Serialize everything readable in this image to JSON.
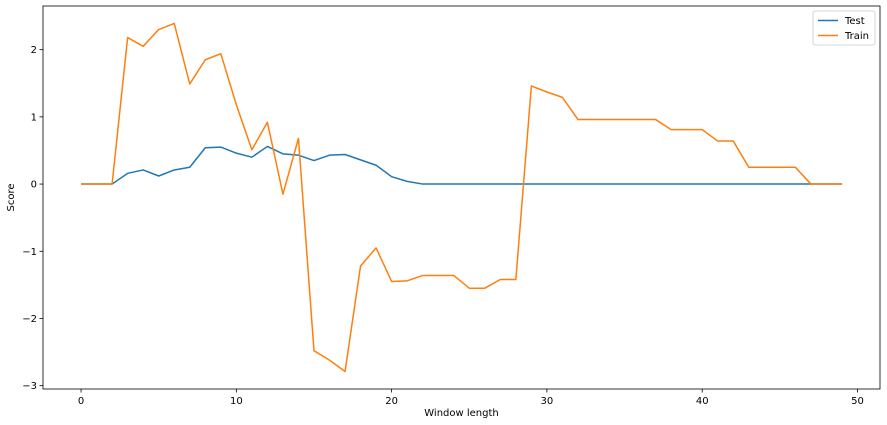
{
  "chart_data": {
    "type": "line",
    "title": "",
    "xlabel": "Window length",
    "ylabel": "Score",
    "xlim": [
      -2.45,
      51.45
    ],
    "ylim": [
      -3.05,
      2.65
    ],
    "xticks": [
      0,
      10,
      20,
      30,
      40,
      50
    ],
    "yticks": [
      -3,
      -2,
      -1,
      0,
      1,
      2
    ],
    "xtick_labels": [
      "0",
      "10",
      "20",
      "30",
      "40",
      "50"
    ],
    "ytick_labels": [
      "−3",
      "−2",
      "−1",
      "0",
      "1",
      "2"
    ],
    "grid": false,
    "legend_position": "top-right",
    "x": [
      0,
      1,
      2,
      3,
      4,
      5,
      6,
      7,
      8,
      9,
      10,
      11,
      12,
      13,
      14,
      15,
      16,
      17,
      18,
      19,
      20,
      21,
      22,
      23,
      24,
      25,
      26,
      27,
      28,
      29,
      30,
      31,
      32,
      33,
      34,
      35,
      36,
      37,
      38,
      39,
      40,
      41,
      42,
      43,
      44,
      45,
      46,
      47,
      48,
      49
    ],
    "series": [
      {
        "name": "Test",
        "color": "#1f77b4",
        "values": [
          0,
          0,
          0,
          0.16,
          0.21,
          0.12,
          0.21,
          0.25,
          0.54,
          0.55,
          0.46,
          0.4,
          0.56,
          0.45,
          0.43,
          0.35,
          0.43,
          0.44,
          0.36,
          0.28,
          0.11,
          0.04,
          0,
          0,
          0,
          0,
          0,
          0,
          0,
          0,
          0,
          0,
          0,
          0,
          0,
          0,
          0,
          0,
          0,
          0,
          0,
          0,
          0,
          0,
          0,
          0,
          0,
          0,
          0,
          0
        ]
      },
      {
        "name": "Train",
        "color": "#ff7f0e",
        "values": [
          0,
          0,
          0,
          2.18,
          2.05,
          2.3,
          2.39,
          1.49,
          1.85,
          1.94,
          1.18,
          0.51,
          0.92,
          -0.15,
          0.68,
          -2.48,
          -2.62,
          -2.79,
          -1.22,
          -0.95,
          -1.45,
          -1.44,
          -1.36,
          -1.36,
          -1.36,
          -1.55,
          -1.55,
          -1.42,
          -1.42,
          1.46,
          1.37,
          1.29,
          0.96,
          0.96,
          0.96,
          0.96,
          0.96,
          0.96,
          0.81,
          0.81,
          0.81,
          0.64,
          0.64,
          0.25,
          0.25,
          0.25,
          0.25,
          0,
          0,
          0
        ]
      }
    ]
  }
}
